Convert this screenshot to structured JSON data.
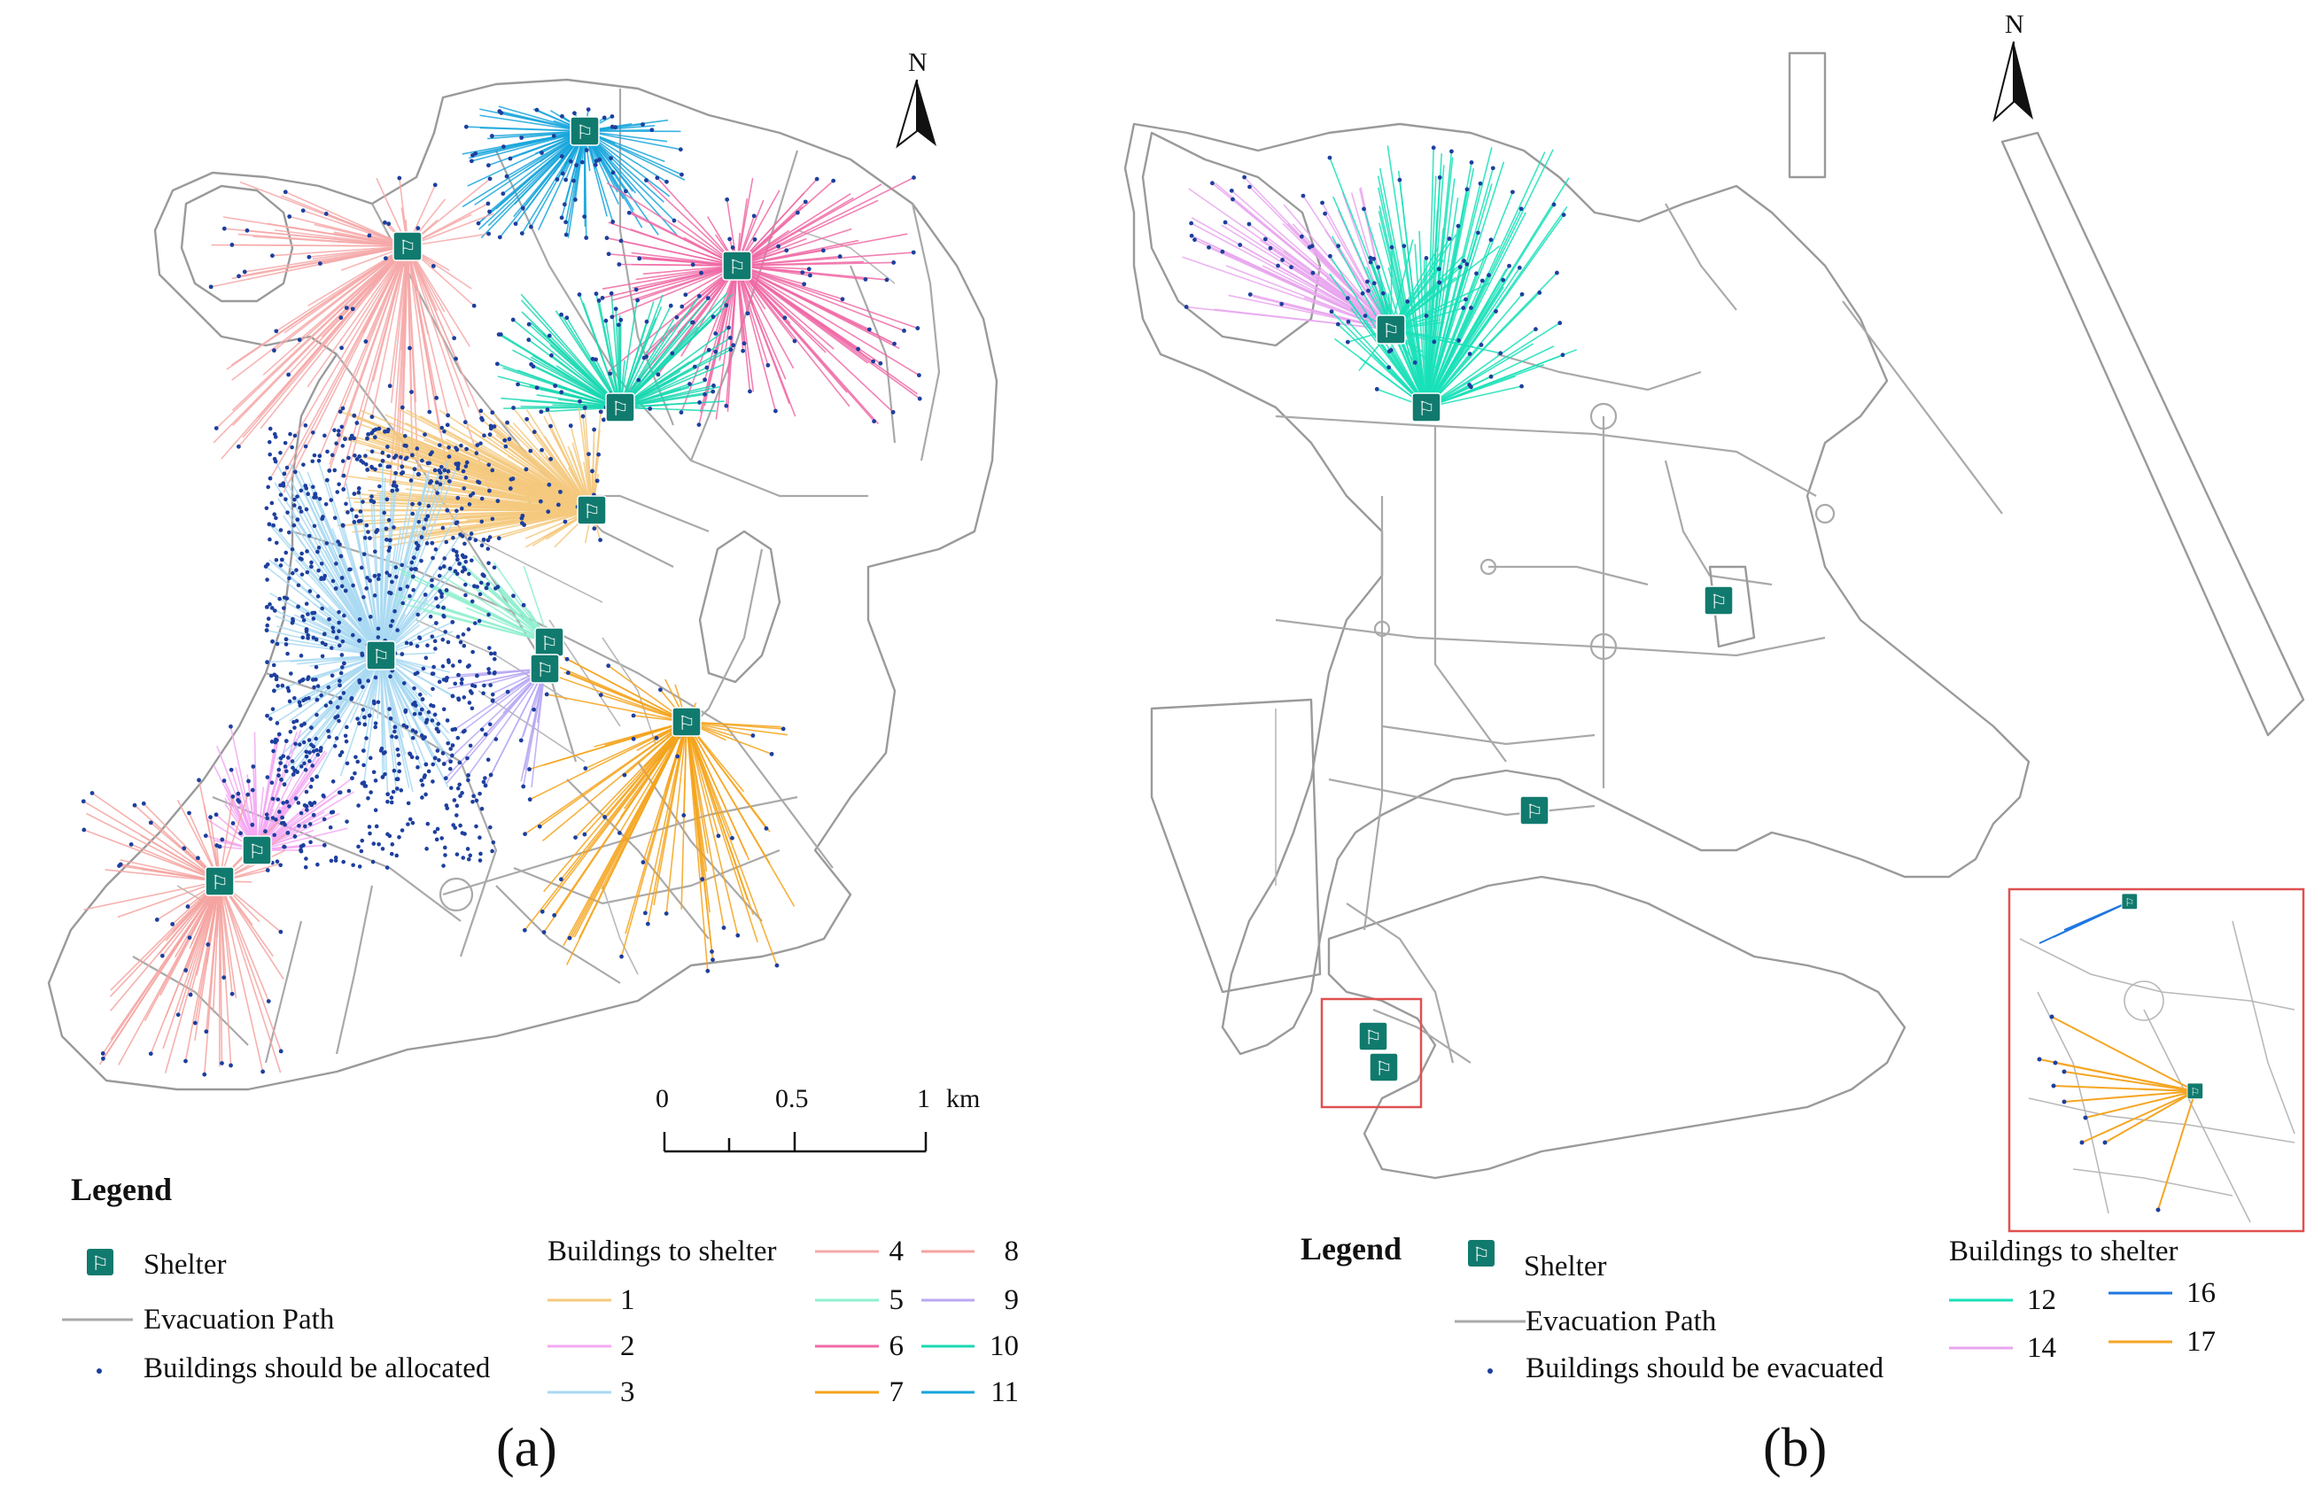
{
  "panels": [
    {
      "label": "(a)",
      "north": "N",
      "scale": {
        "ticks": [
          "0",
          "0.5",
          "1"
        ],
        "unit": "km"
      },
      "legend": {
        "title": "Legend",
        "shelter": "Shelter",
        "path": "Evacuation Path",
        "buildings": "Buildings should be allocated",
        "group_title": "Buildings to shelter",
        "items": [
          {
            "label": "1",
            "color": "#f5c97e"
          },
          {
            "label": "2",
            "color": "#f3a8f3"
          },
          {
            "label": "3",
            "color": "#a9d9f2"
          },
          {
            "label": "4",
            "color": "#f6a8a8"
          },
          {
            "label": "5",
            "color": "#8ff0cf"
          },
          {
            "label": "6",
            "color": "#f06aa6"
          },
          {
            "label": "7",
            "color": "#f5a31b"
          },
          {
            "label": "8",
            "color": "#f4a3a0"
          },
          {
            "label": "9",
            "color": "#b9a8f3"
          },
          {
            "label": "10",
            "color": "#19d8b2"
          },
          {
            "label": "11",
            "color": "#17a6dc"
          }
        ]
      },
      "shelter_icon": "running-person-exit-icon",
      "shelter_color": "#117a6e",
      "building_dot_color": "#1d3f9e"
    },
    {
      "label": "(b)",
      "north": "N",
      "legend": {
        "title": "Legend",
        "shelter": "Shelter",
        "path": "Evacuation Path",
        "buildings": "Buildings should be evacuated",
        "group_title": "Buildings to shelter",
        "items": [
          {
            "label": "12",
            "color": "#19e0b8"
          },
          {
            "label": "16",
            "color": "#1f77e0"
          },
          {
            "label": "14",
            "color": "#e9a6ef"
          },
          {
            "label": "17",
            "color": "#f5a623"
          }
        ]
      },
      "inset_frame_color": "#e05050"
    }
  ]
}
